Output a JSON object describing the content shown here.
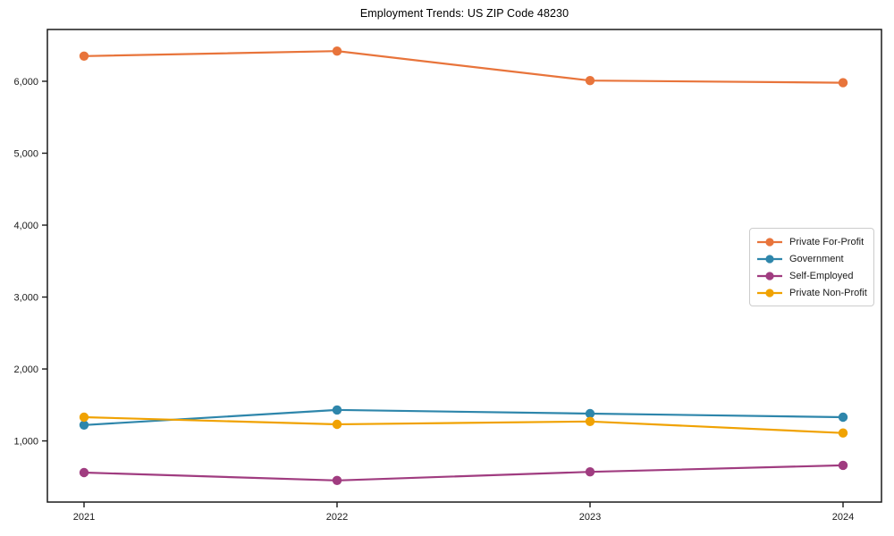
{
  "chart_data": {
    "type": "line",
    "title": "Employment Trends: US ZIP Code 48230",
    "x": [
      "2021",
      "2022",
      "2023",
      "2024"
    ],
    "series": [
      {
        "name": "Private For-Profit",
        "color": "#E8743B",
        "values": [
          6350,
          6420,
          6010,
          5980
        ]
      },
      {
        "name": "Government",
        "color": "#2E86AB",
        "values": [
          1220,
          1430,
          1380,
          1330
        ]
      },
      {
        "name": "Self-Employed",
        "color": "#A03C80",
        "values": [
          560,
          450,
          570,
          660
        ]
      },
      {
        "name": "Private Non-Profit",
        "color": "#F0A202",
        "values": [
          1330,
          1230,
          1270,
          1110
        ]
      }
    ],
    "ylim": [
      150,
      6720
    ],
    "yticks": [
      1000,
      2000,
      3000,
      4000,
      5000,
      6000
    ],
    "ytick_labels": [
      "1,000",
      "2,000",
      "3,000",
      "4,000",
      "5,000",
      "6,000"
    ],
    "xlabel": "",
    "ylabel": "",
    "grid": false,
    "legend_position": "center-right"
  }
}
